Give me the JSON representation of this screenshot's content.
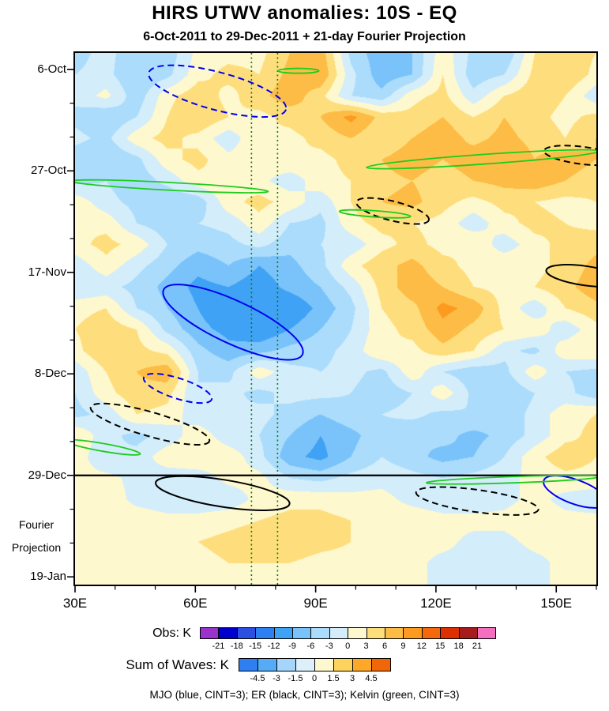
{
  "chart_data": {
    "type": "heatmap",
    "title": "HIRS UTWV anomalies: 10S - EQ",
    "subtitle": "6-Oct-2011 to 29-Dec-2011 + 21-day Fourier Projection",
    "x_axis": {
      "tick_labels": [
        "30E",
        "60E",
        "90E",
        "120E",
        "150E"
      ],
      "tick_lons": [
        30,
        60,
        90,
        120,
        150
      ],
      "minor_step_deg": 10,
      "range_lon": [
        30,
        160
      ]
    },
    "y_axis": {
      "tick_labels": [
        "6-Oct",
        "27-Oct",
        "17-Nov",
        "8-Dec",
        "29-Dec",
        "19-Jan"
      ],
      "tick_days": [
        0,
        21,
        42,
        63,
        84,
        105
      ],
      "minor_step_days": 7,
      "range_days": [
        -3.4,
        106.6
      ],
      "direction": "time increases downward"
    },
    "side_label": {
      "line1": "Fourier",
      "line2": "Projection"
    },
    "field": {
      "units": "K",
      "lon_range": [
        30,
        160
      ],
      "day_range": [
        -3.4,
        106.6
      ],
      "values": [
        [
          -4,
          -2,
          -5,
          -5,
          1,
          2,
          2,
          6,
          8,
          -4,
          -8,
          -6,
          2,
          -4,
          -6,
          3,
          5,
          3
        ],
        [
          -3,
          -2,
          -6,
          -4,
          2,
          4,
          3,
          7,
          9,
          -2,
          -8,
          -6,
          3,
          -5,
          -3,
          4,
          6,
          2
        ],
        [
          -2,
          1,
          -5,
          2,
          5,
          2,
          5,
          8,
          4,
          -3,
          -5,
          2,
          4,
          -2,
          3,
          5,
          3,
          -2
        ],
        [
          -4,
          -6,
          -3,
          3,
          6,
          3,
          2,
          4,
          6,
          10,
          5,
          4,
          6,
          3,
          6,
          4,
          2,
          4
        ],
        [
          -2,
          -4,
          2,
          4,
          2,
          -2,
          3,
          2,
          4,
          6,
          3,
          6,
          8,
          5,
          7,
          5,
          3,
          6
        ],
        [
          -5,
          -6,
          -4,
          2,
          4,
          1,
          2,
          3,
          2,
          4,
          6,
          8,
          6,
          8,
          9,
          6,
          8,
          6
        ],
        [
          -4,
          -3,
          -5,
          -2,
          2,
          3,
          1,
          -2,
          2,
          3,
          5,
          6,
          4,
          6,
          7,
          8,
          6,
          4
        ],
        [
          2,
          -2,
          -4,
          -6,
          -5,
          2,
          4,
          2,
          -2,
          3,
          6,
          7,
          4,
          2,
          4,
          3,
          2,
          3
        ],
        [
          3,
          2,
          -3,
          -5,
          -3,
          -2,
          2,
          -3,
          -4,
          2,
          4,
          3,
          2,
          -2,
          2,
          4,
          3,
          2
        ],
        [
          2,
          4,
          2,
          -3,
          -5,
          -4,
          -2,
          -5,
          -3,
          -2,
          2,
          4,
          2,
          3,
          -2,
          2,
          4,
          5
        ],
        [
          -2,
          2,
          -2,
          -5,
          -8,
          -6,
          -9,
          -7,
          -4,
          2,
          5,
          7,
          4,
          2,
          3,
          2,
          4,
          7
        ],
        [
          -3,
          -2,
          -4,
          -7,
          -10,
          -9,
          -11,
          -8,
          -6,
          -2,
          4,
          8,
          6,
          3,
          2,
          3,
          5,
          8
        ],
        [
          2,
          3,
          -3,
          -6,
          -9,
          -12,
          -10,
          -12,
          -8,
          -4,
          3,
          5,
          10,
          8,
          2,
          -2,
          3,
          5
        ],
        [
          3,
          5,
          3,
          -4,
          -8,
          -10,
          -12,
          -9,
          -6,
          -3,
          2,
          4,
          8,
          5,
          3,
          2,
          -2,
          2
        ],
        [
          2,
          6,
          4,
          2,
          -5,
          -8,
          -7,
          -5,
          -4,
          -2,
          3,
          2,
          5,
          3,
          -2,
          -4,
          2,
          3
        ],
        [
          -2,
          3,
          6,
          8,
          -3,
          -4,
          2,
          -2,
          -3,
          -2,
          -4,
          2,
          -3,
          -5,
          -4,
          2,
          -3,
          -4
        ],
        [
          -3,
          2,
          5,
          4,
          -3,
          -2,
          -4,
          -2,
          -2,
          -3,
          -5,
          -3,
          2,
          -4,
          -6,
          -3,
          -2,
          -5
        ],
        [
          -4,
          -2,
          3,
          2,
          -2,
          -3,
          -2,
          -4,
          -6,
          -4,
          -3,
          -2,
          -4,
          -3,
          -5,
          -2,
          2,
          3
        ],
        [
          3,
          -2,
          -4,
          -2,
          2,
          -2,
          -3,
          -6,
          -9,
          -7,
          -4,
          -6,
          -5,
          -7,
          -5,
          -2,
          2,
          4
        ],
        [
          2,
          -3,
          -2,
          2,
          3,
          2,
          -2,
          -8,
          -10,
          -6,
          -3,
          -5,
          -7,
          -6,
          -3,
          2,
          5,
          3
        ],
        [
          1,
          1,
          -1,
          -2,
          -2,
          1,
          1,
          -3,
          -4,
          -2,
          -1,
          -2,
          -3,
          -2,
          -1,
          1,
          2,
          2
        ],
        [
          2,
          2,
          -1,
          -2,
          -2,
          -2,
          1,
          2,
          2,
          1,
          1,
          -1,
          -2,
          -2,
          -1,
          1,
          -1,
          -2
        ],
        [
          1,
          2,
          2,
          1,
          1,
          2,
          3,
          4,
          4,
          3,
          2,
          2,
          1,
          1,
          1,
          2,
          1,
          1
        ],
        [
          1,
          1,
          2,
          2,
          3,
          4,
          5,
          5,
          4,
          3,
          2,
          1,
          1,
          -1,
          -1,
          1,
          1,
          2
        ],
        [
          1,
          1,
          1,
          2,
          2,
          3,
          3,
          3,
          2,
          2,
          1,
          1,
          -1,
          -1,
          -2,
          -1,
          1,
          1
        ],
        [
          1,
          1,
          1,
          1,
          2,
          2,
          2,
          2,
          2,
          1,
          1,
          1,
          -1,
          -1,
          -1,
          -1,
          1,
          1
        ]
      ]
    },
    "levels": [
      -21,
      -18,
      -15,
      -12,
      -9,
      -6,
      -3,
      0,
      3,
      6,
      9,
      12,
      15,
      18,
      21
    ],
    "obs_colors": [
      "#9933CC",
      "#0000CD",
      "#2B4FE0",
      "#2E7FF0",
      "#3FA2F5",
      "#7AC3FA",
      "#ABDCFB",
      "#D3EDFB",
      "#FEF8CE",
      "#FEDE7C",
      "#FDBC45",
      "#FD9A20",
      "#F4690B",
      "#DC3003",
      "#A61C1C",
      "#F56FC1"
    ],
    "colorbars": [
      {
        "label": "Obs: K",
        "tick_labels": [
          "-21",
          "-18",
          "-15",
          "-12",
          "-9",
          "-6",
          "-3",
          "0",
          "3",
          "6",
          "9",
          "12",
          "15",
          "18",
          "21"
        ],
        "colors": [
          "#9933CC",
          "#0000CD",
          "#2B4FE0",
          "#2E7FF0",
          "#3FA2F5",
          "#7AC3FA",
          "#ABDCFB",
          "#D3EDFB",
          "#FEF8CE",
          "#FEDE7C",
          "#FDBC45",
          "#FD9A20",
          "#F4690B",
          "#DC3003",
          "#A61C1C",
          "#F56FC1"
        ]
      },
      {
        "label": "Sum of Waves: K",
        "tick_labels": [
          "-4.5",
          "-3",
          "-1.5",
          "0",
          "1.5",
          "3",
          "4.5"
        ],
        "colors": [
          "#2E7FF0",
          "#55ABF5",
          "#A5D5FA",
          "#DCEFFB",
          "#FEF8CE",
          "#FDD35E",
          "#FDA828",
          "#F0670A"
        ]
      }
    ],
    "reference_lines": {
      "vertical_lons": [
        74,
        80.5
      ],
      "vertical_color": "#117711",
      "forecast_start_day": 84,
      "forecast_start_label": "29-Dec"
    },
    "contour_colors": {
      "mjo": "#0000EE",
      "er": "#000000",
      "kelvin": "#1ECC1E"
    },
    "contours": [
      {
        "wave": "mjo",
        "style": "dashed",
        "lon": 65.5,
        "day": 4.5,
        "rx_deg": 17.7,
        "ry_days": 3.9,
        "rot": 15
      },
      {
        "wave": "mjo",
        "style": "solid",
        "lon": 69.4,
        "day": 52.3,
        "rx_deg": 19.1,
        "ry_days": 4.4,
        "rot": 25
      },
      {
        "wave": "mjo",
        "style": "dashed",
        "lon": 55.6,
        "day": 66,
        "rx_deg": 8.9,
        "ry_days": 2.1,
        "rot": 18
      },
      {
        "wave": "mjo",
        "style": "solid",
        "lon": 154.7,
        "day": 87.4,
        "rx_deg": 8.3,
        "ry_days": 2.5,
        "rot": 20
      },
      {
        "wave": "er",
        "style": "dashed",
        "lon": 48.7,
        "day": 73.4,
        "rx_deg": 15.4,
        "ry_days": 2.5,
        "rot": 16
      },
      {
        "wave": "er",
        "style": "dashed",
        "lon": 109.2,
        "day": 29.3,
        "rx_deg": 9.3,
        "ry_days": 2.0,
        "rot": 14
      },
      {
        "wave": "er",
        "style": "dashed",
        "lon": 156.4,
        "day": 17.8,
        "rx_deg": 9.5,
        "ry_days": 1.8,
        "rot": 7
      },
      {
        "wave": "er",
        "style": "solid",
        "lon": 157.2,
        "day": 42.7,
        "rx_deg": 9.8,
        "ry_days": 2.0,
        "rot": 8
      },
      {
        "wave": "er",
        "style": "solid",
        "lon": 66.8,
        "day": 87.7,
        "rx_deg": 16.9,
        "ry_days": 2.8,
        "rot": 9
      },
      {
        "wave": "er",
        "style": "dashed",
        "lon": 130.3,
        "day": 89.3,
        "rx_deg": 15.4,
        "ry_days": 2.3,
        "rot": 8
      },
      {
        "wave": "kelvin",
        "style": "solid",
        "lon": 53.6,
        "day": 24.2,
        "rx_deg": 24.6,
        "ry_days": 0.8,
        "rot": 3
      },
      {
        "wave": "kelvin",
        "style": "solid",
        "lon": 131.8,
        "day": 18.6,
        "rx_deg": 29.2,
        "ry_days": 1.0,
        "rot": -4
      },
      {
        "wave": "kelvin",
        "style": "solid",
        "lon": 104.8,
        "day": 29.9,
        "rx_deg": 8.9,
        "ry_days": 0.65,
        "rot": 4
      },
      {
        "wave": "kelvin",
        "style": "solid",
        "lon": 36.9,
        "day": 78.2,
        "rx_deg": 9.5,
        "ry_days": 0.8,
        "rot": 10
      },
      {
        "wave": "kelvin",
        "style": "solid",
        "lon": 139.3,
        "day": 84.9,
        "rx_deg": 21.7,
        "ry_days": 0.65,
        "rot": -2
      },
      {
        "wave": "kelvin",
        "style": "solid",
        "lon": 85.7,
        "day": 0.3,
        "rx_deg": 5.1,
        "ry_days": 0.5,
        "rot": 0
      }
    ],
    "caption": "MJO (blue, CINT=3); ER (black, CINT=3); Kelvin (green, CINT=3)"
  }
}
